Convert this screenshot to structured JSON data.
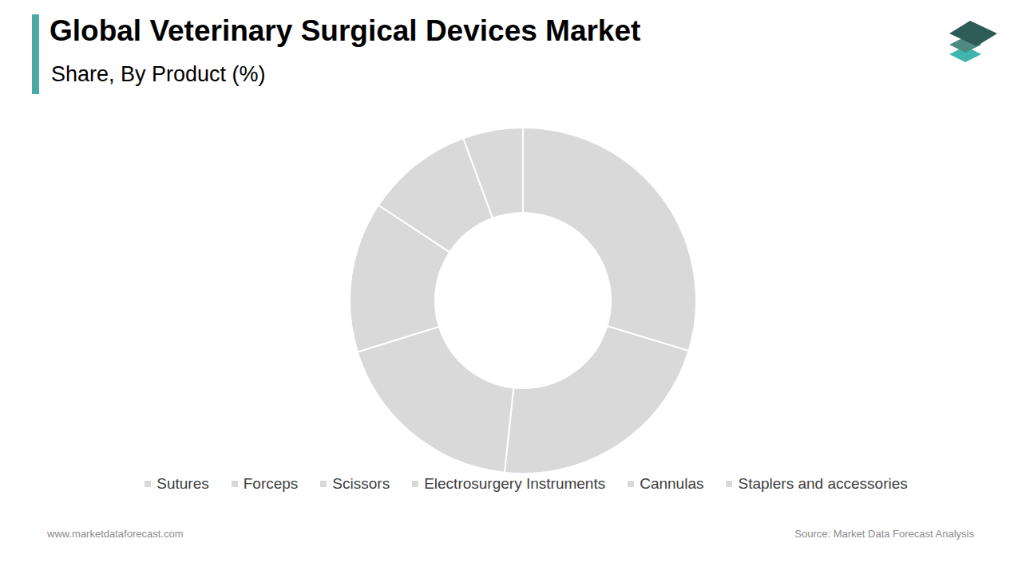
{
  "chart_data": {
    "type": "pie",
    "title": "Global Veterinary Surgical Devices Market",
    "subtitle": "Share, By Product (%)",
    "categories": [
      "Sutures",
      "Forceps",
      "Scissors",
      "Electrosurgery Instruments",
      "Cannulas",
      "Staplers and accessories"
    ],
    "values": [
      29.7,
      22.0,
      18.5,
      14.1,
      10.1,
      5.6
    ],
    "colors": [
      "#d9d9d9",
      "#d9d9d9",
      "#d9d9d9",
      "#d9d9d9",
      "#d9d9d9",
      "#d9d9d9"
    ],
    "annotations": [
      "www.marketdataforecast.com",
      "Source: Market Data Forecast Analysis"
    ]
  }
}
